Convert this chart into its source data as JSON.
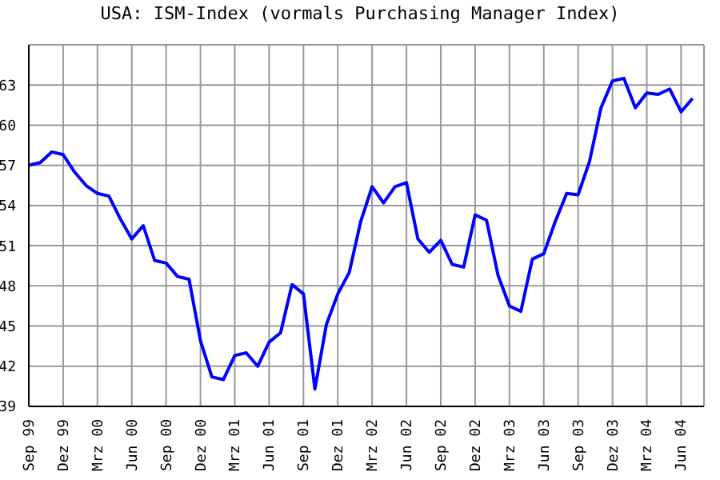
{
  "chart_data": {
    "type": "line",
    "title": "USA: ISM-Index (vormals Purchasing Manager Index)",
    "x": [
      "1999-09",
      "1999-10",
      "1999-11",
      "1999-12",
      "2000-01",
      "2000-02",
      "2000-03",
      "2000-04",
      "2000-05",
      "2000-06",
      "2000-07",
      "2000-08",
      "2000-09",
      "2000-10",
      "2000-11",
      "2000-12",
      "2001-01",
      "2001-02",
      "2001-03",
      "2001-04",
      "2001-05",
      "2001-06",
      "2001-07",
      "2001-08",
      "2001-09",
      "2001-10",
      "2001-11",
      "2001-12",
      "2002-01",
      "2002-02",
      "2002-03",
      "2002-04",
      "2002-05",
      "2002-06",
      "2002-07",
      "2002-08",
      "2002-09",
      "2002-10",
      "2002-11",
      "2002-12",
      "2003-01",
      "2003-02",
      "2003-03",
      "2003-04",
      "2003-05",
      "2003-06",
      "2003-07",
      "2003-08",
      "2003-09",
      "2003-10",
      "2003-11",
      "2003-12",
      "2004-01",
      "2004-02",
      "2004-03",
      "2004-04",
      "2004-05",
      "2004-06",
      "2004-07"
    ],
    "series": [
      {
        "color": "#0000ff",
        "values": [
          57.0,
          57.2,
          58.0,
          57.8,
          56.5,
          55.5,
          54.9,
          54.7,
          53.0,
          51.5,
          52.5,
          49.9,
          49.7,
          48.7,
          48.5,
          43.9,
          41.2,
          41.0,
          42.8,
          43.0,
          42.0,
          43.8,
          44.5,
          48.1,
          47.4,
          40.3,
          45.1,
          47.4,
          49.0,
          52.8,
          55.4,
          54.2,
          55.4,
          55.7,
          51.5,
          50.5,
          51.4,
          49.6,
          49.4,
          53.3,
          52.9,
          48.8,
          46.5,
          46.1,
          50.0,
          50.4,
          52.8,
          54.9,
          54.8,
          57.3,
          61.3,
          63.3,
          63.5,
          61.3,
          62.4,
          62.3,
          62.7,
          61.0,
          62.0
        ]
      }
    ],
    "xlim": [
      "1999-09",
      "2004-08"
    ],
    "xticks": [
      {
        "value": "1999-09",
        "label": "Sep 99"
      },
      {
        "value": "1999-12",
        "label": "Dez 99"
      },
      {
        "value": "2000-03",
        "label": "Mrz 00"
      },
      {
        "value": "2000-06",
        "label": "Jun 00"
      },
      {
        "value": "2000-09",
        "label": "Sep 00"
      },
      {
        "value": "2000-12",
        "label": "Dez 00"
      },
      {
        "value": "2001-03",
        "label": "Mrz 01"
      },
      {
        "value": "2001-06",
        "label": "Jun 01"
      },
      {
        "value": "2001-09",
        "label": "Sep 01"
      },
      {
        "value": "2001-12",
        "label": "Dez 01"
      },
      {
        "value": "2002-03",
        "label": "Mrz 02"
      },
      {
        "value": "2002-06",
        "label": "Jun 02"
      },
      {
        "value": "2002-09",
        "label": "Sep 02"
      },
      {
        "value": "2002-12",
        "label": "Dez 02"
      },
      {
        "value": "2003-03",
        "label": "Mrz 03"
      },
      {
        "value": "2003-06",
        "label": "Jun 03"
      },
      {
        "value": "2003-09",
        "label": "Sep 03"
      },
      {
        "value": "2003-12",
        "label": "Dez 03"
      },
      {
        "value": "2004-03",
        "label": "Mrz 04"
      },
      {
        "value": "2004-06",
        "label": "Jun 04"
      }
    ],
    "ylim": [
      39,
      66
    ],
    "yticks": [
      39,
      42,
      45,
      48,
      51,
      54,
      57,
      60,
      63
    ],
    "grid": true,
    "marker": "none",
    "line_style": "solid"
  }
}
